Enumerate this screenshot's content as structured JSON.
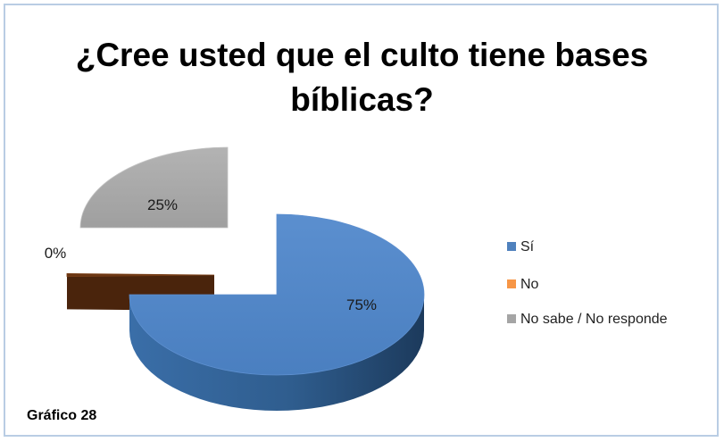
{
  "chart_data": {
    "type": "pie",
    "title": "¿Cree usted que el culto tiene bases bíblicas?",
    "title_lines": [
      "¿Cree usted que el culto tiene bases",
      "bíblicas?"
    ],
    "categories": [
      "Sí",
      "No",
      "No sabe / No responde"
    ],
    "values": [
      75,
      0,
      25
    ],
    "data_labels": [
      "75%",
      "0%",
      "25%"
    ],
    "colors": [
      "#4f81bd",
      "#f79646",
      "#a5a5a5"
    ],
    "style": "3d-exploded",
    "legend_position": "right"
  },
  "caption": "Gráfico 28"
}
